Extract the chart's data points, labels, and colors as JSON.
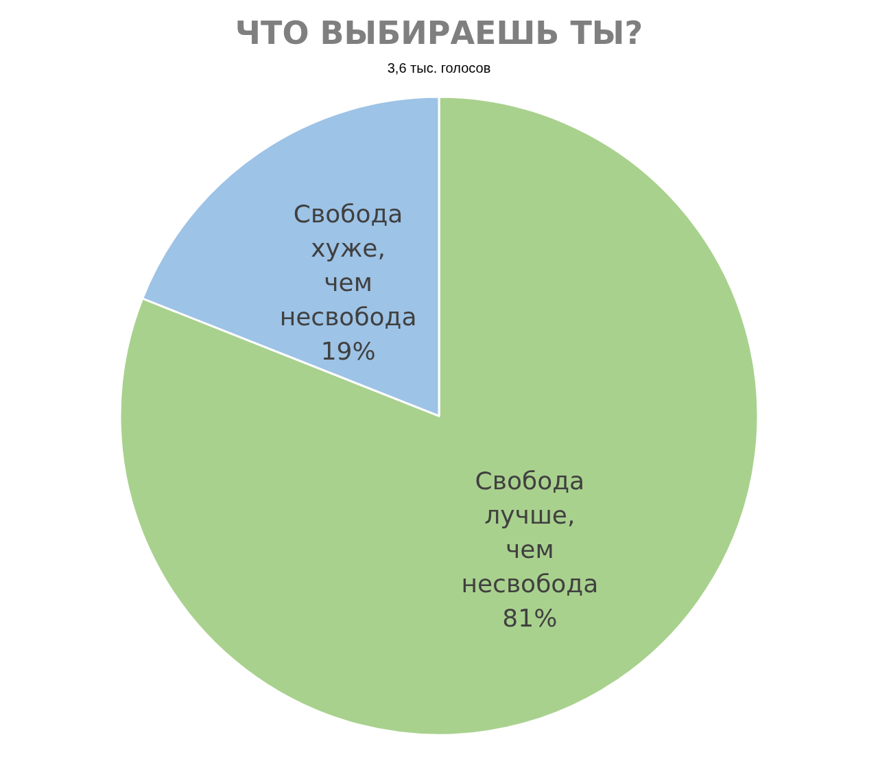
{
  "chart_data": {
    "type": "pie",
    "title": "ЧТО ВЫБИРАЕШЬ ТЫ?",
    "subtitle": "3,6 тыс. голосов",
    "categories": [
      "Свобода лучше, чем несвобода",
      "Свобода хуже, чем несвобода"
    ],
    "values": [
      81,
      19
    ],
    "colors": [
      "#a9d18e",
      "#9dc3e6"
    ],
    "value_labels": [
      "81%",
      "19%"
    ],
    "legend": false
  }
}
